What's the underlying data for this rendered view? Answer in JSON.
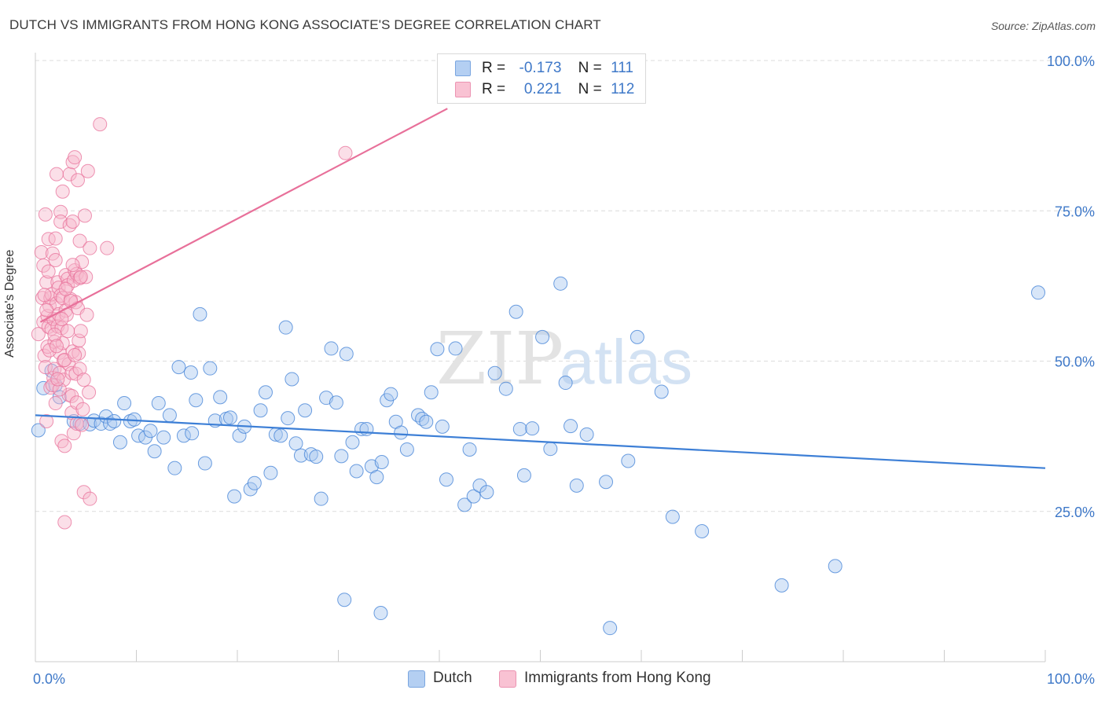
{
  "title": "DUTCH VS IMMIGRANTS FROM HONG KONG ASSOCIATE'S DEGREE CORRELATION CHART",
  "source": "Source: ZipAtlas.com",
  "watermark": {
    "zip": "ZIP",
    "atlas": "atlas"
  },
  "colors": {
    "dutch": "#3d7fd6",
    "hongkong": "#e8709a",
    "dutch_fill": "#a9c8ef",
    "hongkong_fill": "#f6b8cc",
    "tick_label": "#3e78c8",
    "grid": "#dcdcdc"
  },
  "stats": {
    "dutch": {
      "r_label": "R =",
      "r_value": "-0.173",
      "n_label": "N =",
      "n_value": "111"
    },
    "hongkong": {
      "r_label": "R =",
      "r_value": "0.221",
      "n_label": "N =",
      "n_value": "112"
    }
  },
  "legend": {
    "dutch": "Dutch",
    "hongkong": "Immigrants from Hong Kong"
  },
  "chart_data": {
    "type": "scatter",
    "ylabel": "Associate's Degree",
    "xlim": [
      0,
      100
    ],
    "ylim": [
      0,
      100
    ],
    "x_tick_labels": [
      "0.0%",
      "100.0%"
    ],
    "y_ticks": [
      25,
      50,
      75,
      100
    ],
    "y_tick_labels": [
      "25.0%",
      "50.0%",
      "75.0%",
      "100.0%"
    ],
    "grid": "horizontal dashed",
    "series": [
      {
        "name": "Dutch",
        "trend": {
          "x": [
            0,
            100
          ],
          "y": [
            41.0,
            32.2
          ]
        },
        "points": [
          [
            0.3,
            38.5
          ],
          [
            0.8,
            45.5
          ],
          [
            1.6,
            48.4
          ],
          [
            2.0,
            46.0
          ],
          [
            2.4,
            44.0
          ],
          [
            3.8,
            40.0
          ],
          [
            4.4,
            39.6
          ],
          [
            5.4,
            39.5
          ],
          [
            5.8,
            40.1
          ],
          [
            6.5,
            39.6
          ],
          [
            7.0,
            40.8
          ],
          [
            7.4,
            39.6
          ],
          [
            7.8,
            40.0
          ],
          [
            8.4,
            36.5
          ],
          [
            8.8,
            43.0
          ],
          [
            9.4,
            40.0
          ],
          [
            9.8,
            40.3
          ],
          [
            10.2,
            37.6
          ],
          [
            10.9,
            37.3
          ],
          [
            11.4,
            38.4
          ],
          [
            11.8,
            35.0
          ],
          [
            12.2,
            43.0
          ],
          [
            12.7,
            37.3
          ],
          [
            13.3,
            41.0
          ],
          [
            13.8,
            32.2
          ],
          [
            14.2,
            49.0
          ],
          [
            14.7,
            37.6
          ],
          [
            15.4,
            48.1
          ],
          [
            15.9,
            43.5
          ],
          [
            16.3,
            57.8
          ],
          [
            16.8,
            33.0
          ],
          [
            17.3,
            48.8
          ],
          [
            17.8,
            40.1
          ],
          [
            18.3,
            44.0
          ],
          [
            18.9,
            40.4
          ],
          [
            19.3,
            40.6
          ],
          [
            19.7,
            27.5
          ],
          [
            20.2,
            37.6
          ],
          [
            20.7,
            39.1
          ],
          [
            21.3,
            28.7
          ],
          [
            21.7,
            29.7
          ],
          [
            22.3,
            41.8
          ],
          [
            22.8,
            44.8
          ],
          [
            23.3,
            31.4
          ],
          [
            23.8,
            37.8
          ],
          [
            24.3,
            37.6
          ],
          [
            24.8,
            55.6
          ],
          [
            25.4,
            47.0
          ],
          [
            25.8,
            36.3
          ],
          [
            26.3,
            34.3
          ],
          [
            26.7,
            41.8
          ],
          [
            27.3,
            34.5
          ],
          [
            27.8,
            34.1
          ],
          [
            28.3,
            27.1
          ],
          [
            28.8,
            43.9
          ],
          [
            29.3,
            52.1
          ],
          [
            29.8,
            43.1
          ],
          [
            30.3,
            34.2
          ],
          [
            30.8,
            51.2
          ],
          [
            31.4,
            36.5
          ],
          [
            31.8,
            31.7
          ],
          [
            32.3,
            38.7
          ],
          [
            32.8,
            38.7
          ],
          [
            33.3,
            32.5
          ],
          [
            33.8,
            30.7
          ],
          [
            34.3,
            33.2
          ],
          [
            34.8,
            43.5
          ],
          [
            35.2,
            44.5
          ],
          [
            35.7,
            39.9
          ],
          [
            36.2,
            38.1
          ],
          [
            36.8,
            35.3
          ],
          [
            37.9,
            41.0
          ],
          [
            38.3,
            40.4
          ],
          [
            38.7,
            39.9
          ],
          [
            39.2,
            44.8
          ],
          [
            39.8,
            52.0
          ],
          [
            40.3,
            39.1
          ],
          [
            40.7,
            30.3
          ],
          [
            41.6,
            52.1
          ],
          [
            42.5,
            26.1
          ],
          [
            43.0,
            35.3
          ],
          [
            43.4,
            27.5
          ],
          [
            44.0,
            29.3
          ],
          [
            44.7,
            28.2
          ],
          [
            45.5,
            48.0
          ],
          [
            46.6,
            45.4
          ],
          [
            47.6,
            58.2
          ],
          [
            48.0,
            38.7
          ],
          [
            49.2,
            38.8
          ],
          [
            50.2,
            54.0
          ],
          [
            51.0,
            35.4
          ],
          [
            52.0,
            62.9
          ],
          [
            52.5,
            46.4
          ],
          [
            53.0,
            39.2
          ],
          [
            53.6,
            29.3
          ],
          [
            54.6,
            37.8
          ],
          [
            56.5,
            29.9
          ],
          [
            56.9,
            5.6
          ],
          [
            58.7,
            33.4
          ],
          [
            59.6,
            54.0
          ],
          [
            62.0,
            44.9
          ],
          [
            63.1,
            24.1
          ],
          [
            66.0,
            21.7
          ],
          [
            73.9,
            12.7
          ],
          [
            79.2,
            15.9
          ],
          [
            99.3,
            61.4
          ],
          [
            30.6,
            10.3
          ],
          [
            34.2,
            8.1
          ],
          [
            15.5,
            38.0
          ],
          [
            25.0,
            40.5
          ],
          [
            48.4,
            31.0
          ]
        ]
      },
      {
        "name": "Immigrants from Hong Kong",
        "trend": {
          "x": [
            0.5,
            40.8
          ],
          "y": [
            56.5,
            92.0
          ]
        },
        "points": [
          [
            0.3,
            54.5
          ],
          [
            0.6,
            68.1
          ],
          [
            0.7,
            60.5
          ],
          [
            0.8,
            65.9
          ],
          [
            0.8,
            56.5
          ],
          [
            0.9,
            50.9
          ],
          [
            1.0,
            49.0
          ],
          [
            1.0,
            74.4
          ],
          [
            1.1,
            63.1
          ],
          [
            1.1,
            40.0
          ],
          [
            1.2,
            57.5
          ],
          [
            1.2,
            52.4
          ],
          [
            1.3,
            55.7
          ],
          [
            1.3,
            70.3
          ],
          [
            1.4,
            59.2
          ],
          [
            1.5,
            60.5
          ],
          [
            1.6,
            55.4
          ],
          [
            1.6,
            61.1
          ],
          [
            1.7,
            67.9
          ],
          [
            1.8,
            47.2
          ],
          [
            1.8,
            57.0
          ],
          [
            1.9,
            48.7
          ],
          [
            1.9,
            53.2
          ],
          [
            2.0,
            70.4
          ],
          [
            2.0,
            66.8
          ],
          [
            2.1,
            81.1
          ],
          [
            2.1,
            59.6
          ],
          [
            2.2,
            55.8
          ],
          [
            2.2,
            63.1
          ],
          [
            2.3,
            62.2
          ],
          [
            2.3,
            57.8
          ],
          [
            2.4,
            48.0
          ],
          [
            2.4,
            51.4
          ],
          [
            2.5,
            74.8
          ],
          [
            2.5,
            73.2
          ],
          [
            2.5,
            60.9
          ],
          [
            2.6,
            55.5
          ],
          [
            2.6,
            36.7
          ],
          [
            2.7,
            78.2
          ],
          [
            2.7,
            60.5
          ],
          [
            2.8,
            50.1
          ],
          [
            2.8,
            46.9
          ],
          [
            2.9,
            35.9
          ],
          [
            2.9,
            23.2
          ],
          [
            3.0,
            64.3
          ],
          [
            3.0,
            58.4
          ],
          [
            3.1,
            57.7
          ],
          [
            3.2,
            63.7
          ],
          [
            3.2,
            62.6
          ],
          [
            3.3,
            49.5
          ],
          [
            3.3,
            44.4
          ],
          [
            3.4,
            81.1
          ],
          [
            3.4,
            72.6
          ],
          [
            3.5,
            60.3
          ],
          [
            3.6,
            48.0
          ],
          [
            3.6,
            44.2
          ],
          [
            3.6,
            41.4
          ],
          [
            3.7,
            83.1
          ],
          [
            3.7,
            73.2
          ],
          [
            3.7,
            51.6
          ],
          [
            3.8,
            63.4
          ],
          [
            3.8,
            38.0
          ],
          [
            3.9,
            83.9
          ],
          [
            3.9,
            65.1
          ],
          [
            4.0,
            59.8
          ],
          [
            4.0,
            47.9
          ],
          [
            4.1,
            64.5
          ],
          [
            4.1,
            43.1
          ],
          [
            4.1,
            39.6
          ],
          [
            4.2,
            80.1
          ],
          [
            4.2,
            58.8
          ],
          [
            4.3,
            53.4
          ],
          [
            4.3,
            51.3
          ],
          [
            4.4,
            70.0
          ],
          [
            4.4,
            63.8
          ],
          [
            4.4,
            48.7
          ],
          [
            4.5,
            55.0
          ],
          [
            4.6,
            39.4
          ],
          [
            4.6,
            66.5
          ],
          [
            4.7,
            42.0
          ],
          [
            4.8,
            28.2
          ],
          [
            4.8,
            46.9
          ],
          [
            4.9,
            74.2
          ],
          [
            5.0,
            64.0
          ],
          [
            5.1,
            57.7
          ],
          [
            5.2,
            81.6
          ],
          [
            5.3,
            44.8
          ],
          [
            5.4,
            68.8
          ],
          [
            5.4,
            27.1
          ],
          [
            6.4,
            89.4
          ],
          [
            7.1,
            68.8
          ],
          [
            30.7,
            84.6
          ],
          [
            1.5,
            45.6
          ],
          [
            2.0,
            43.0
          ],
          [
            2.7,
            53.0
          ],
          [
            3.5,
            60.0
          ],
          [
            1.7,
            46.0
          ],
          [
            2.4,
            45.3
          ],
          [
            1.1,
            58.5
          ],
          [
            2.9,
            50.2
          ],
          [
            3.2,
            55.0
          ],
          [
            3.9,
            51.0
          ],
          [
            1.4,
            51.8
          ],
          [
            2.2,
            47.0
          ],
          [
            0.9,
            61.0
          ],
          [
            1.9,
            54.4
          ],
          [
            3.0,
            62.0
          ],
          [
            2.6,
            57.0
          ],
          [
            1.3,
            64.9
          ],
          [
            3.7,
            66.0
          ],
          [
            2.1,
            52.5
          ],
          [
            4.5,
            64.0
          ]
        ]
      }
    ]
  }
}
